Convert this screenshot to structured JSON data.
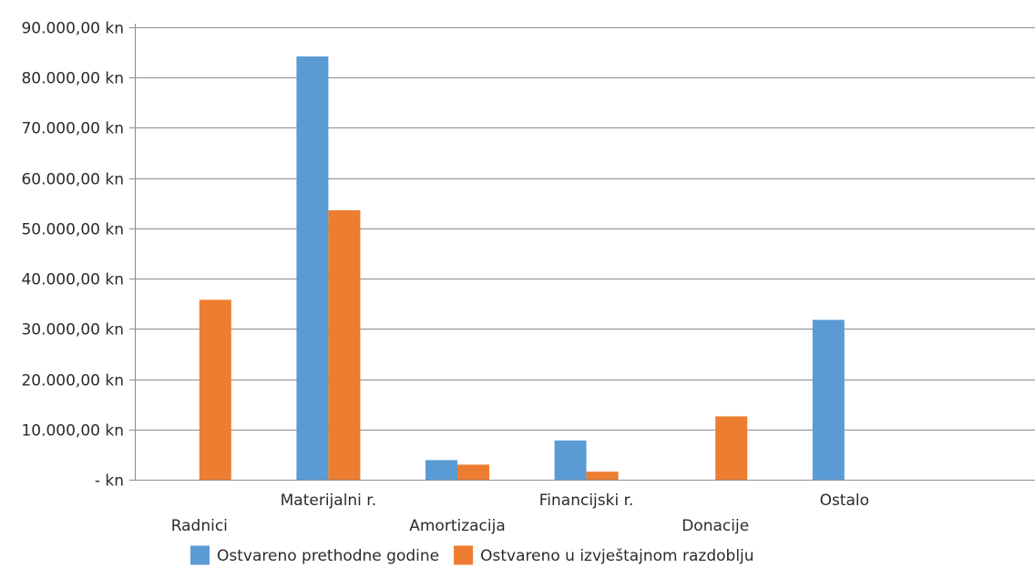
{
  "chart_data": {
    "type": "bar",
    "categories": [
      "Radnici",
      "Materijalni r.",
      "Amortizacija",
      "Financijski r.",
      "Donacije",
      "Ostalo"
    ],
    "series": [
      {
        "name": "Ostvareno prethodne godine",
        "color": "#5b9bd5",
        "values": [
          0,
          84200,
          3900,
          7800,
          0,
          31800
        ]
      },
      {
        "name": "Ostvareno u izvještajnom razdoblju",
        "color": "#ed7d31",
        "values": [
          35800,
          53600,
          3000,
          1600,
          12600,
          0
        ]
      }
    ],
    "ylim": [
      0,
      90000
    ],
    "yticks": [
      0,
      10000,
      20000,
      30000,
      40000,
      50000,
      60000,
      70000,
      80000,
      90000
    ],
    "ytick_labels": [
      "-  kn",
      "10.000,00 kn",
      "20.000,00 kn",
      "30.000,00 kn",
      "40.000,00 kn",
      "50.000,00 kn",
      "60.000,00 kn",
      "70.000,00 kn",
      "80.000,00 kn",
      "90.000,00 kn"
    ],
    "grid": true,
    "legend_position": "bottom",
    "gridline_color": "#8c8c8c"
  }
}
